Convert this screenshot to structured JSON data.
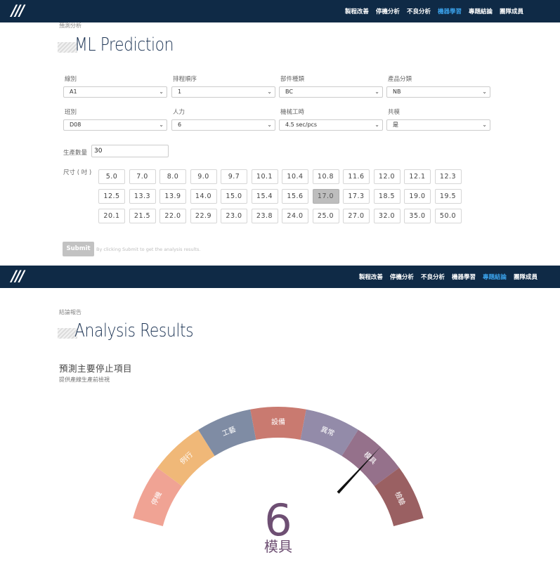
{
  "nav": {
    "logo": "///",
    "items": [
      "製程改善",
      "停機分析",
      "不良分析",
      "機器學習",
      "專題結論",
      "團隊成員"
    ]
  },
  "ml": {
    "breadcrumb": "預測分析",
    "title": "ML Prediction",
    "fields": [
      {
        "label": "線別",
        "value": "A1"
      },
      {
        "label": "排程順序",
        "value": "1"
      },
      {
        "label": "部件種類",
        "value": "BC"
      },
      {
        "label": "產品分類",
        "value": "NB"
      },
      {
        "label": "班別",
        "value": "D08"
      },
      {
        "label": "人力",
        "value": "6"
      },
      {
        "label": "機械工時",
        "value": "4.5 sec/pcs"
      },
      {
        "label": "共模",
        "value": "是"
      }
    ],
    "quantity_label": "生產數量",
    "quantity_value": "30",
    "size_label": "尺寸 ( 吋 )",
    "sizes": [
      "5.0",
      "7.0",
      "8.0",
      "9.0",
      "9.7",
      "10.1",
      "10.4",
      "10.8",
      "11.6",
      "12.0",
      "12.1",
      "12.3",
      "12.5",
      "13.3",
      "13.9",
      "14.0",
      "15.0",
      "15.4",
      "15.6",
      "17.0",
      "17.3",
      "18.5",
      "19.0",
      "19.5",
      "20.1",
      "21.5",
      "22.0",
      "22.9",
      "23.0",
      "23.8",
      "24.0",
      "25.0",
      "27.0",
      "32.0",
      "35.0",
      "50.0"
    ],
    "selected_size": "17.0",
    "submit_label": "Submit",
    "hint": "By clicking Submit to get the analysis results."
  },
  "results": {
    "breadcrumb": "結論報告",
    "title": "Analysis Results",
    "subtitle": "預測主要停止項目",
    "description": "提供產線生產前檢視",
    "gauge": {
      "segments": [
        {
          "label": "停機",
          "color": "#f0a394"
        },
        {
          "label": "例行",
          "color": "#f0b878"
        },
        {
          "label": "工藝",
          "color": "#7f8ca4"
        },
        {
          "label": "設備",
          "color": "#c97a70"
        },
        {
          "label": "異常",
          "color": "#938ba9"
        },
        {
          "label": "模具",
          "color": "#95718b"
        },
        {
          "label": "檢驗",
          "color": "#9a6062"
        }
      ],
      "value": "6",
      "value_label": "模具",
      "value_color": "#6e4f73",
      "needle_index": 5.5
    }
  }
}
